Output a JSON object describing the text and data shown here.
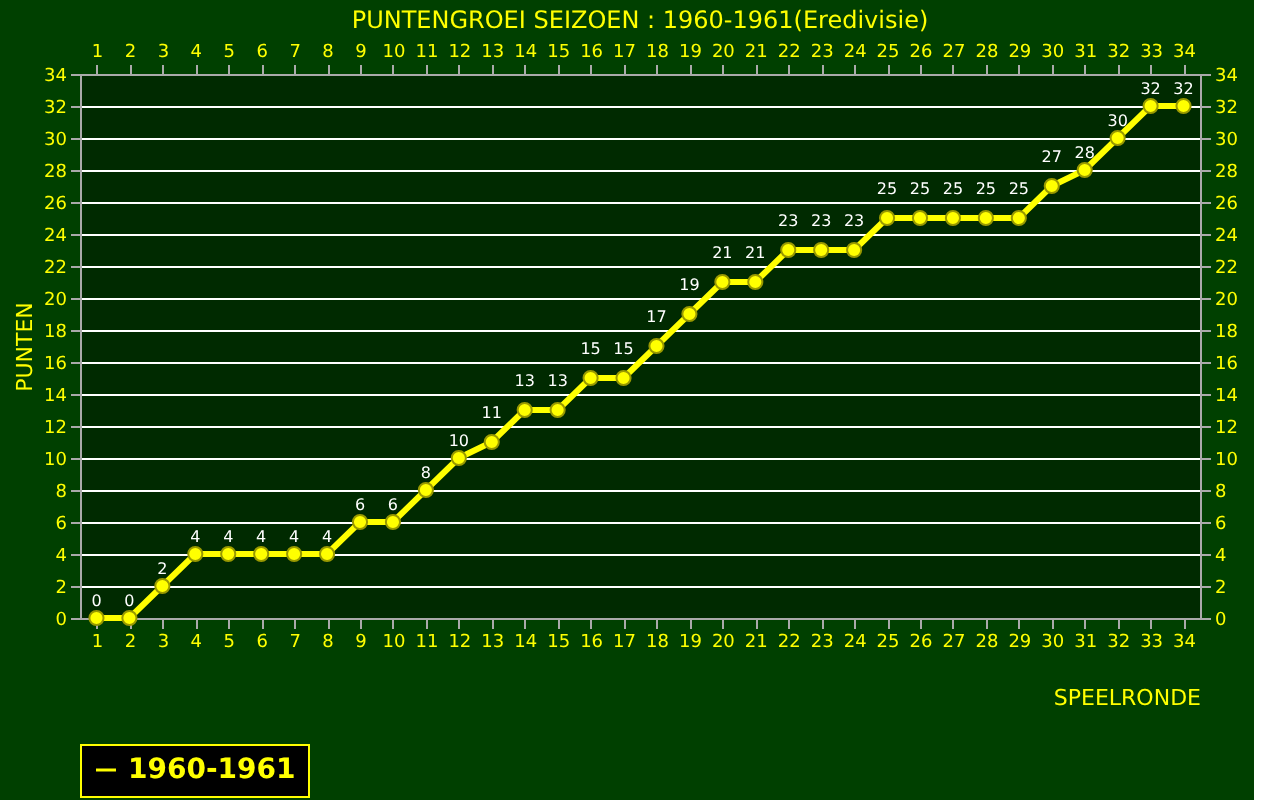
{
  "chart_data": {
    "type": "line",
    "title": "PUNTENGROEI SEIZOEN : 1960-1961(Eredivisie)",
    "xlabel": "SPEELRONDE",
    "ylabel": "PUNTEN",
    "x": [
      1,
      2,
      3,
      4,
      5,
      6,
      7,
      8,
      9,
      10,
      11,
      12,
      13,
      14,
      15,
      16,
      17,
      18,
      19,
      20,
      21,
      22,
      23,
      24,
      25,
      26,
      27,
      28,
      29,
      30,
      31,
      32,
      33,
      34
    ],
    "series": [
      {
        "name": "1960-1961",
        "color": "#ffff00",
        "values": [
          0,
          0,
          2,
          4,
          4,
          4,
          4,
          4,
          6,
          6,
          8,
          10,
          11,
          13,
          13,
          15,
          15,
          17,
          19,
          21,
          21,
          23,
          23,
          23,
          25,
          25,
          25,
          25,
          25,
          27,
          28,
          30,
          32,
          32
        ]
      }
    ],
    "xlim": [
      0.5,
      34.5
    ],
    "xticks": [
      1,
      2,
      3,
      4,
      5,
      6,
      7,
      8,
      9,
      10,
      11,
      12,
      13,
      14,
      15,
      16,
      17,
      18,
      19,
      20,
      21,
      22,
      23,
      24,
      25,
      26,
      27,
      28,
      29,
      30,
      31,
      32,
      33,
      34
    ],
    "x2lim": [
      0.5,
      34.5
    ],
    "x2ticks": [
      1,
      2,
      3,
      4,
      5,
      6,
      7,
      8,
      9,
      10,
      11,
      12,
      13,
      14,
      15,
      16,
      17,
      18,
      19,
      20,
      21,
      22,
      23,
      24,
      25,
      26,
      27,
      28,
      29,
      30,
      31,
      32,
      33,
      34
    ],
    "ylim": [
      0,
      34
    ],
    "yticks": [
      0,
      2,
      4,
      6,
      8,
      10,
      12,
      14,
      16,
      18,
      20,
      22,
      24,
      26,
      28,
      30,
      32,
      34
    ],
    "y2lim": [
      0,
      34
    ],
    "y2ticks": [
      0,
      2,
      4,
      6,
      8,
      10,
      12,
      14,
      16,
      18,
      20,
      22,
      24,
      26,
      28,
      30,
      32,
      34
    ],
    "grid": "y",
    "legend": "bottom",
    "marker": "circle",
    "line_style": "solid",
    "data_labels": true
  }
}
